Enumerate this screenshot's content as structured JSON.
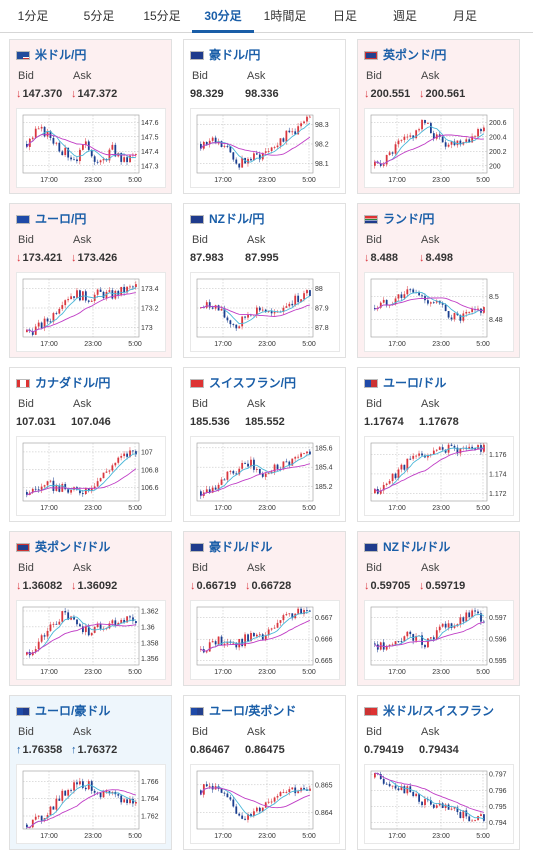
{
  "tabs": [
    {
      "label": "1分足",
      "active": false
    },
    {
      "label": "5分足",
      "active": false
    },
    {
      "label": "15分足",
      "active": false
    },
    {
      "label": "30分足",
      "active": true
    },
    {
      "label": "1時間足",
      "active": false
    },
    {
      "label": "日足",
      "active": false
    },
    {
      "label": "週足",
      "active": false
    },
    {
      "label": "月足",
      "active": false
    }
  ],
  "labels": {
    "bid": "Bid",
    "ask": "Ask"
  },
  "colors": {
    "up_candle": "#d9363e",
    "down_candle": "#1a3e8f",
    "ma_short": "#4ab7d8",
    "ma_long": "#c03ec6",
    "down_arrow": "#d9363e",
    "up_arrow": "#1a5ea8"
  },
  "pairs": [
    {
      "name": "米ドル/円",
      "flag": "flag-us",
      "bid": "147.370",
      "ask": "147.372",
      "direction": "down",
      "bg": "down",
      "chart_data": {
        "type": "candlestick",
        "x_ticks": [
          "17:00",
          "23:00",
          "5:00"
        ],
        "y_ticks": [
          "147.6",
          "147.5",
          "147.4",
          "147.3"
        ],
        "ylim": [
          147.25,
          147.65
        ],
        "trend": [
          147.45,
          147.55,
          147.5,
          147.4,
          147.35,
          147.45,
          147.3,
          147.42,
          147.33,
          147.38
        ]
      }
    },
    {
      "name": "豪ドル/円",
      "flag": "flag-au",
      "bid": "98.329",
      "ask": "98.336",
      "direction": "none",
      "bg": "none",
      "chart_data": {
        "type": "candlestick",
        "x_ticks": [
          "17:00",
          "23:00",
          "5:00"
        ],
        "y_ticks": [
          "98.3",
          "98.2",
          "98.1"
        ],
        "ylim": [
          98.05,
          98.35
        ],
        "trend": [
          98.2,
          98.22,
          98.18,
          98.1,
          98.12,
          98.15,
          98.2,
          98.24,
          98.28,
          98.33
        ]
      }
    },
    {
      "name": "英ポンド/円",
      "flag": "flag-gb",
      "bid": "200.551",
      "ask": "200.561",
      "direction": "down",
      "bg": "down",
      "chart_data": {
        "type": "candlestick",
        "x_ticks": [
          "17:00",
          "23:00",
          "5:00"
        ],
        "y_ticks": [
          "200.6",
          "200.4",
          "200.2",
          "200"
        ],
        "ylim": [
          199.9,
          200.7
        ],
        "trend": [
          200.0,
          200.1,
          200.3,
          200.4,
          200.6,
          200.4,
          200.3,
          200.35,
          200.4,
          200.55
        ]
      }
    },
    {
      "name": "ユーロ/円",
      "flag": "flag-eu",
      "bid": "173.421",
      "ask": "173.426",
      "direction": "down",
      "bg": "down",
      "chart_data": {
        "type": "candlestick",
        "x_ticks": [
          "17:00",
          "23:00",
          "5:00"
        ],
        "y_ticks": [
          "173.4",
          "173.2",
          "173"
        ],
        "ylim": [
          172.9,
          173.5
        ],
        "trend": [
          172.95,
          173.0,
          173.1,
          173.3,
          173.35,
          173.3,
          173.35,
          173.33,
          173.38,
          173.42
        ]
      }
    },
    {
      "name": "NZドル/円",
      "flag": "flag-nz",
      "bid": "87.983",
      "ask": "87.995",
      "direction": "none",
      "bg": "none",
      "chart_data": {
        "type": "candlestick",
        "x_ticks": [
          "17:00",
          "23:00",
          "5:00"
        ],
        "y_ticks": [
          "88",
          "87.9",
          "87.8"
        ],
        "ylim": [
          87.75,
          88.05
        ],
        "trend": [
          87.9,
          87.92,
          87.85,
          87.8,
          87.88,
          87.9,
          87.85,
          87.92,
          87.95,
          87.98
        ]
      }
    },
    {
      "name": "ランド/円",
      "flag": "flag-za",
      "bid": "8.488",
      "ask": "8.498",
      "direction": "down",
      "bg": "down",
      "chart_data": {
        "type": "candlestick",
        "x_ticks": [
          "17:00",
          "23:00",
          "5:00"
        ],
        "y_ticks": [
          "8.5",
          "8.48"
        ],
        "ylim": [
          8.465,
          8.515
        ],
        "trend": [
          8.49,
          8.495,
          8.5,
          8.505,
          8.498,
          8.495,
          8.485,
          8.48,
          8.485,
          8.49
        ]
      }
    },
    {
      "name": "カナダドル/円",
      "flag": "flag-ca",
      "bid": "107.031",
      "ask": "107.046",
      "direction": "none",
      "bg": "none",
      "chart_data": {
        "type": "candlestick",
        "x_ticks": [
          "17:00",
          "23:00",
          "5:00"
        ],
        "y_ticks": [
          "107",
          "106.8",
          "106.6"
        ],
        "ylim": [
          106.45,
          107.1
        ],
        "trend": [
          106.55,
          106.6,
          106.62,
          106.58,
          106.55,
          106.6,
          106.7,
          106.85,
          106.95,
          107.03
        ]
      }
    },
    {
      "name": "スイスフラン/円",
      "flag": "flag-ch",
      "bid": "185.536",
      "ask": "185.552",
      "direction": "none",
      "bg": "none",
      "chart_data": {
        "type": "candlestick",
        "x_ticks": [
          "17:00",
          "23:00",
          "5:00"
        ],
        "y_ticks": [
          "185.6",
          "185.4",
          "185.2"
        ],
        "ylim": [
          185.05,
          185.65
        ],
        "trend": [
          185.15,
          185.2,
          185.3,
          185.35,
          185.45,
          185.3,
          185.4,
          185.45,
          185.5,
          185.54
        ]
      }
    },
    {
      "name": "ユーロ/ドル",
      "flag": "flag-eu-us",
      "bid": "1.17674",
      "ask": "1.17678",
      "direction": "none",
      "bg": "none",
      "chart_data": {
        "type": "candlestick",
        "x_ticks": [
          "17:00",
          "23:00",
          "5:00"
        ],
        "y_ticks": [
          "1.176",
          "1.174",
          "1.172"
        ],
        "ylim": [
          1.1712,
          1.1772
        ],
        "trend": [
          1.172,
          1.173,
          1.1745,
          1.1755,
          1.176,
          1.1762,
          1.1768,
          1.1765,
          1.1768,
          1.1767
        ]
      }
    },
    {
      "name": "英ポンド/ドル",
      "flag": "flag-gb",
      "bid": "1.36082",
      "ask": "1.36092",
      "direction": "down",
      "bg": "down",
      "chart_data": {
        "type": "candlestick",
        "x_ticks": [
          "17:00",
          "23:00",
          "5:00"
        ],
        "y_ticks": [
          "1.362",
          "1.36",
          "1.358",
          "1.356"
        ],
        "ylim": [
          1.3552,
          1.3625
        ],
        "trend": [
          1.3565,
          1.358,
          1.36,
          1.3615,
          1.3605,
          1.3595,
          1.36,
          1.3605,
          1.361,
          1.3608
        ]
      }
    },
    {
      "name": "豪ドル/ドル",
      "flag": "flag-au",
      "bid": "0.66719",
      "ask": "0.66728",
      "direction": "down",
      "bg": "down",
      "chart_data": {
        "type": "candlestick",
        "x_ticks": [
          "17:00",
          "23:00",
          "5:00"
        ],
        "y_ticks": [
          "0.667",
          "0.666",
          "0.665"
        ],
        "ylim": [
          0.6648,
          0.6675
        ],
        "trend": [
          0.6655,
          0.6658,
          0.666,
          0.6657,
          0.6662,
          0.666,
          0.6665,
          0.667,
          0.6673,
          0.6672
        ]
      }
    },
    {
      "name": "NZドル/ドル",
      "flag": "flag-nz",
      "bid": "0.59705",
      "ask": "0.59719",
      "direction": "down",
      "bg": "down",
      "chart_data": {
        "type": "candlestick",
        "x_ticks": [
          "17:00",
          "23:00",
          "5:00"
        ],
        "y_ticks": [
          "0.597",
          "0.596",
          "0.595"
        ],
        "ylim": [
          0.5948,
          0.5975
        ],
        "trend": [
          0.5958,
          0.5955,
          0.596,
          0.5962,
          0.5958,
          0.5963,
          0.5966,
          0.5968,
          0.5972,
          0.597
        ]
      }
    },
    {
      "name": "ユーロ/豪ドル",
      "flag": "flag-eu-au",
      "bid": "1.76358",
      "ask": "1.76372",
      "direction": "up",
      "bg": "up",
      "chart_data": {
        "type": "candlestick",
        "x_ticks": [
          "17:00",
          "23:00",
          "5:00"
        ],
        "y_ticks": [
          "1.766",
          "1.764",
          "1.762"
        ],
        "ylim": [
          1.7605,
          1.7672
        ],
        "trend": [
          1.761,
          1.7615,
          1.763,
          1.7645,
          1.766,
          1.7655,
          1.7648,
          1.7642,
          1.7638,
          1.7636
        ]
      }
    },
    {
      "name": "ユーロ/英ポンド",
      "flag": "flag-eu-gb",
      "bid": "0.86467",
      "ask": "0.86475",
      "direction": "none",
      "bg": "none",
      "chart_data": {
        "type": "candlestick",
        "x_ticks": [
          "17:00",
          "23:00",
          "5:00"
        ],
        "y_ticks": [
          "0.865",
          "0.864"
        ],
        "ylim": [
          0.8634,
          0.8655
        ],
        "trend": [
          0.8648,
          0.865,
          0.8645,
          0.864,
          0.8638,
          0.8642,
          0.8646,
          0.8649,
          0.8648,
          0.8647
        ]
      }
    },
    {
      "name": "米ドル/スイスフラン",
      "flag": "flag-us-ch",
      "bid": "0.79419",
      "ask": "0.79434",
      "direction": "none",
      "bg": "none",
      "chart_data": {
        "type": "candlestick",
        "x_ticks": [
          "17:00",
          "23:00",
          "5:00"
        ],
        "y_ticks": [
          "0.797",
          "0.796",
          "0.795",
          "0.794"
        ],
        "ylim": [
          0.7936,
          0.7972
        ],
        "trend": [
          0.7968,
          0.7966,
          0.7962,
          0.7958,
          0.7953,
          0.795,
          0.7948,
          0.7945,
          0.7943,
          0.7942
        ]
      }
    }
  ]
}
